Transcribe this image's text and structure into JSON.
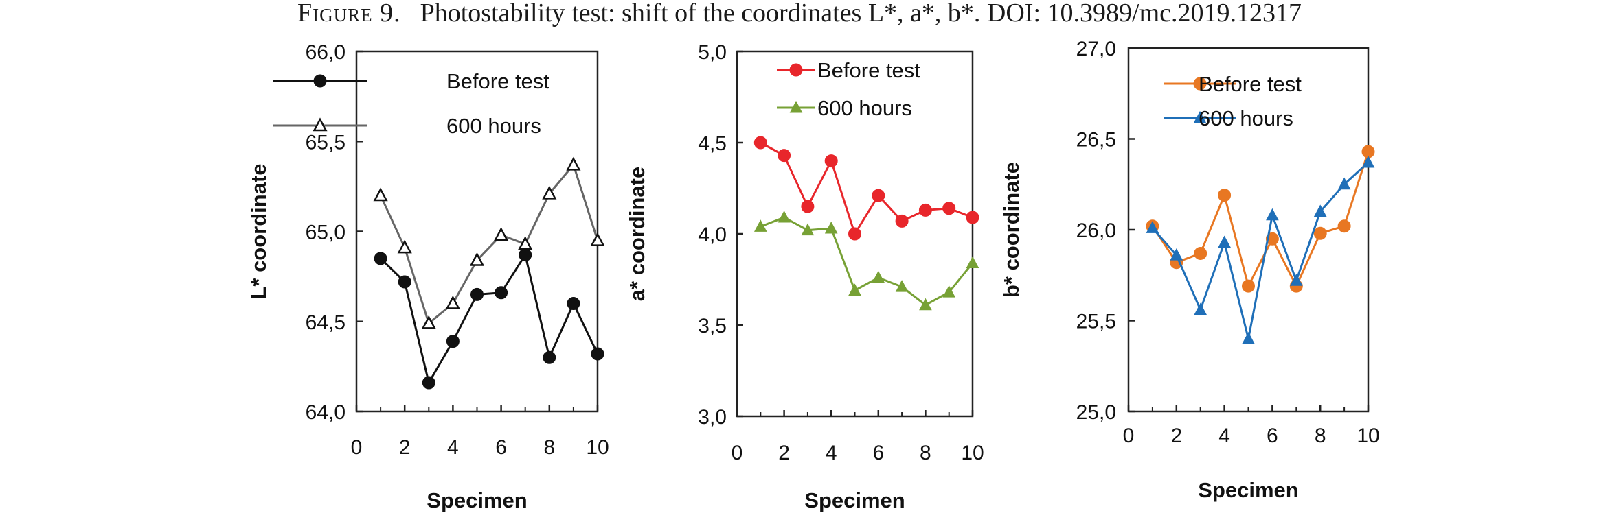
{
  "caption": {
    "label": "Figure 9.",
    "text": "Photostability test: shift of the coordinates L*, a*, b*. DOI: 10.3989/mc.2019.12317"
  },
  "chart_data": [
    {
      "type": "line",
      "ylabel": "L* coordinate",
      "xlabel": "Specimen",
      "xlim": [
        0,
        10
      ],
      "ylim": [
        64.0,
        66.0
      ],
      "x_ticks": [
        "0",
        "2",
        "4",
        "6",
        "8",
        "10"
      ],
      "y_ticks": [
        "64,0",
        "64,5",
        "65,0",
        "65,5",
        "66,0"
      ],
      "legend": "top-left",
      "x": [
        1,
        2,
        3,
        4,
        5,
        6,
        7,
        8,
        9,
        10
      ],
      "series": [
        {
          "name": "Before test",
          "marker": "filled-circle",
          "color": "#111111",
          "values": [
            64.85,
            64.72,
            64.16,
            64.39,
            64.65,
            64.66,
            64.87,
            64.3,
            64.6,
            64.32
          ]
        },
        {
          "name": "600 hours",
          "marker": "open-triangle",
          "color": "#666666",
          "values": [
            65.2,
            64.91,
            64.49,
            64.6,
            64.84,
            64.98,
            64.93,
            65.21,
            65.37,
            64.95
          ]
        }
      ]
    },
    {
      "type": "line",
      "ylabel": "a* coordinate",
      "xlabel": "Specimen",
      "xlim": [
        0,
        10
      ],
      "ylim": [
        3.0,
        5.0
      ],
      "x_ticks": [
        "0",
        "2",
        "4",
        "6",
        "8",
        "10"
      ],
      "y_ticks": [
        "3,0",
        "3,5",
        "4,0",
        "4,5",
        "5,0"
      ],
      "legend": "top-left",
      "x": [
        1,
        2,
        3,
        4,
        5,
        6,
        7,
        8,
        9,
        10
      ],
      "series": [
        {
          "name": "Before test",
          "marker": "filled-circle",
          "color": "#e8262b",
          "values": [
            4.5,
            4.43,
            4.15,
            4.4,
            4.0,
            4.21,
            4.07,
            4.13,
            4.14,
            4.09
          ]
        },
        {
          "name": "600 hours",
          "marker": "filled-triangle",
          "color": "#77a135",
          "values": [
            4.04,
            4.09,
            4.02,
            4.03,
            3.69,
            3.76,
            3.71,
            3.61,
            3.68,
            3.84
          ]
        }
      ]
    },
    {
      "type": "line",
      "ylabel": "b* coordinate",
      "xlabel": "Specimen",
      "xlim": [
        0,
        10
      ],
      "ylim": [
        25.0,
        27.0
      ],
      "x_ticks": [
        "0",
        "2",
        "4",
        "6",
        "8",
        "10"
      ],
      "y_ticks": [
        "25,0",
        "25,5",
        "26,0",
        "26,5",
        "27,0"
      ],
      "legend": "top-left",
      "x": [
        1,
        2,
        3,
        4,
        5,
        6,
        7,
        8,
        9,
        10
      ],
      "series": [
        {
          "name": "Before test",
          "marker": "filled-circle",
          "color": "#e87722",
          "values": [
            26.02,
            25.82,
            25.87,
            26.19,
            25.69,
            25.95,
            25.69,
            25.98,
            26.02,
            26.43
          ]
        },
        {
          "name": "600 hours",
          "marker": "filled-triangle",
          "color": "#1f6fb8",
          "values": [
            26.01,
            25.86,
            25.56,
            25.93,
            25.4,
            26.08,
            25.72,
            26.1,
            26.25,
            26.37
          ]
        }
      ]
    }
  ]
}
